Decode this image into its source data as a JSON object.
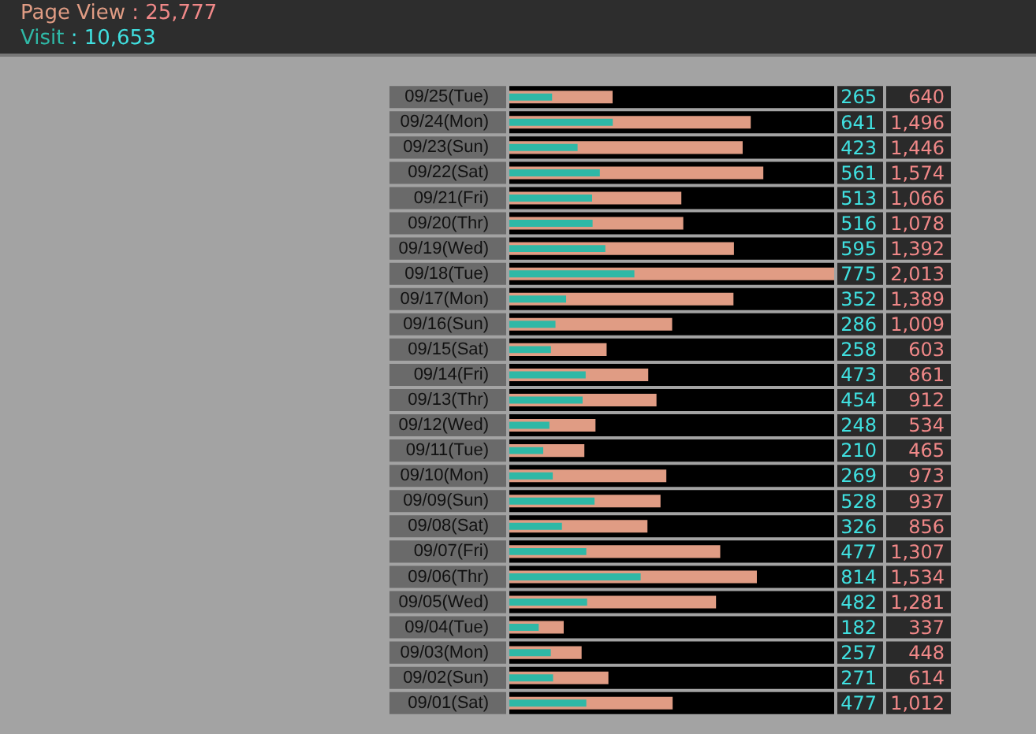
{
  "chart_data": {
    "type": "bar",
    "orientation": "horizontal",
    "legend": "top left",
    "categories": [
      "09/25(Tue)",
      "09/24(Mon)",
      "09/23(Sun)",
      "09/22(Sat)",
      "09/21(Fri)",
      "09/20(Thr)",
      "09/19(Wed)",
      "09/18(Tue)",
      "09/17(Mon)",
      "09/16(Sun)",
      "09/15(Sat)",
      "09/14(Fri)",
      "09/13(Thr)",
      "09/12(Wed)",
      "09/11(Tue)",
      "09/10(Mon)",
      "09/09(Sun)",
      "09/08(Sat)",
      "09/07(Fri)",
      "09/06(Thr)",
      "09/05(Wed)",
      "09/04(Tue)",
      "09/03(Mon)",
      "09/02(Sun)",
      "09/01(Sat)"
    ],
    "series": [
      {
        "name": "Page View",
        "color": "#e09c84",
        "values": [
          640,
          1496,
          1446,
          1574,
          1066,
          1078,
          1392,
          2013,
          1389,
          1009,
          603,
          861,
          912,
          534,
          465,
          973,
          937,
          856,
          1307,
          1534,
          1281,
          337,
          448,
          614,
          1012
        ],
        "value_labels": [
          "640",
          "1,496",
          "1,446",
          "1,574",
          "1,066",
          "1,078",
          "1,392",
          "2,013",
          "1,389",
          "1,009",
          "603",
          "861",
          "912",
          "534",
          "465",
          "973",
          "937",
          "856",
          "1,307",
          "1,534",
          "1,281",
          "337",
          "448",
          "614",
          "1,012"
        ]
      },
      {
        "name": "Visit",
        "color": "#2fb8a6",
        "values": [
          265,
          641,
          423,
          561,
          513,
          516,
          595,
          775,
          352,
          286,
          258,
          473,
          454,
          248,
          210,
          269,
          528,
          326,
          477,
          814,
          482,
          182,
          257,
          271,
          477
        ],
        "value_labels": [
          "265",
          "641",
          "423",
          "561",
          "513",
          "516",
          "595",
          "775",
          "352",
          "286",
          "258",
          "473",
          "454",
          "248",
          "210",
          "269",
          "528",
          "326",
          "477",
          "814",
          "482",
          "182",
          "257",
          "271",
          "477"
        ]
      }
    ],
    "annotations": [
      ": 25,777",
      ": 10,653"
    ]
  }
}
